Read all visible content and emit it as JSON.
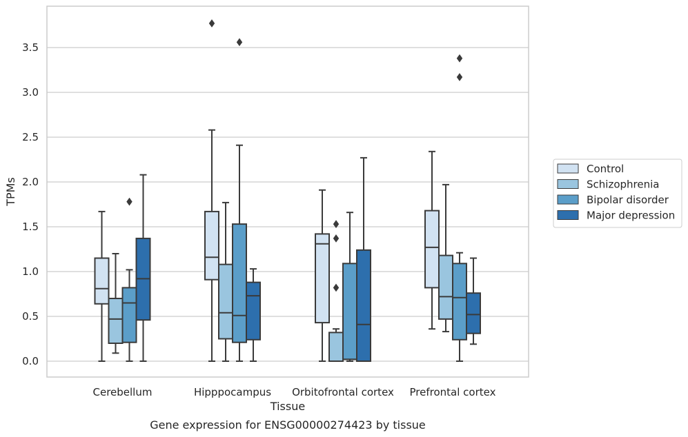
{
  "chart_data": {
    "type": "boxplot",
    "caption": "Gene expression for ENSG00000274423 by tissue",
    "xlabel": "Tissue",
    "ylabel": "TPMs",
    "ylim": [
      -0.18,
      3.95
    ],
    "yticks": [
      "0.0",
      "0.5",
      "1.0",
      "1.5",
      "2.0",
      "2.5",
      "3.0",
      "3.5"
    ],
    "ytick_values": [
      0,
      0.5,
      1.0,
      1.5,
      2.0,
      2.5,
      3.0,
      3.5
    ],
    "grid": true,
    "legend_placement": "right",
    "categories": [
      "Cerebellum",
      "Hipppocampus",
      "Orbitofrontal cortex",
      "Prefrontal cortex"
    ],
    "series": [
      {
        "name": "Control",
        "color": "#d1e2f2",
        "boxes": [
          {
            "whislo": 0.0,
            "q1": 0.64,
            "med": 0.81,
            "q3": 1.15,
            "whishi": 1.67,
            "fliers": []
          },
          {
            "whislo": 0.0,
            "q1": 0.91,
            "med": 1.16,
            "q3": 1.67,
            "whishi": 2.58,
            "fliers": [
              3.77
            ]
          },
          {
            "whislo": 0.0,
            "q1": 0.43,
            "med": 1.31,
            "q3": 1.42,
            "whishi": 1.91,
            "fliers": []
          },
          {
            "whislo": 0.36,
            "q1": 0.82,
            "med": 1.27,
            "q3": 1.68,
            "whishi": 2.34,
            "fliers": []
          }
        ]
      },
      {
        "name": "Schizophrenia",
        "color": "#9ac5df",
        "boxes": [
          {
            "whislo": 0.09,
            "q1": 0.2,
            "med": 0.47,
            "q3": 0.7,
            "whishi": 1.2,
            "fliers": []
          },
          {
            "whislo": 0.0,
            "q1": 0.25,
            "med": 0.54,
            "q3": 1.08,
            "whishi": 1.77,
            "fliers": []
          },
          {
            "whislo": 0.0,
            "q1": 0.0,
            "med": 0.0,
            "q3": 0.32,
            "whishi": 0.36,
            "fliers": [
              0.82,
              1.37,
              1.53
            ]
          },
          {
            "whislo": 0.33,
            "q1": 0.47,
            "med": 0.72,
            "q3": 1.18,
            "whishi": 1.97,
            "fliers": []
          }
        ]
      },
      {
        "name": "Bipolar disorder",
        "color": "#5b9ec9",
        "boxes": [
          {
            "whislo": 0.0,
            "q1": 0.21,
            "med": 0.65,
            "q3": 0.82,
            "whishi": 1.02,
            "fliers": [
              1.78
            ]
          },
          {
            "whislo": 0.0,
            "q1": 0.21,
            "med": 0.51,
            "q3": 1.53,
            "whishi": 2.41,
            "fliers": [
              3.56
            ]
          },
          {
            "whislo": 0.0,
            "q1": 0.02,
            "med": 0.02,
            "q3": 1.09,
            "whishi": 1.66,
            "fliers": []
          },
          {
            "whislo": 0.0,
            "q1": 0.24,
            "med": 0.71,
            "q3": 1.09,
            "whishi": 1.21,
            "fliers": [
              3.17,
              3.38
            ]
          }
        ]
      },
      {
        "name": "Major depression",
        "color": "#2d6fad",
        "boxes": [
          {
            "whislo": 0.0,
            "q1": 0.46,
            "med": 0.92,
            "q3": 1.37,
            "whishi": 2.08,
            "fliers": []
          },
          {
            "whislo": 0.0,
            "q1": 0.24,
            "med": 0.73,
            "q3": 0.88,
            "whishi": 1.03,
            "fliers": []
          },
          {
            "whislo": 0.0,
            "q1": 0.0,
            "med": 0.41,
            "q3": 1.24,
            "whishi": 2.27,
            "fliers": []
          },
          {
            "whislo": 0.19,
            "q1": 0.31,
            "med": 0.52,
            "q3": 0.76,
            "whishi": 1.15,
            "fliers": []
          }
        ]
      }
    ]
  }
}
